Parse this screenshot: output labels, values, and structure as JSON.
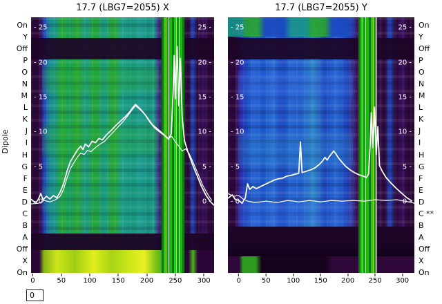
{
  "figure": {
    "ylabel": "Dipole",
    "footer_value": "0"
  },
  "row_labels_left": [
    "On",
    "Y",
    "Off",
    "P",
    "O",
    "N",
    "M",
    "L",
    "K",
    "J",
    "I",
    "H",
    "G",
    "F",
    "E",
    "D",
    "C",
    "B",
    "A",
    "Off",
    "X",
    "On"
  ],
  "row_labels_right": [
    "On",
    "Y",
    "Off",
    "P",
    "O",
    "N",
    "M",
    "L",
    "K",
    "J",
    "I",
    "H",
    "G",
    "F",
    "E",
    "D",
    "C **",
    "B",
    "A",
    "Off",
    "X",
    "On"
  ],
  "palette": {
    "purple-dark": "#2a0736",
    "purple-mid": "#3a1060",
    "blue-deep": "#1b2fae",
    "blue-mid": "#2767d2",
    "teal": "#18958a",
    "green": "#28a42e",
    "green-bright": "#2fc61a",
    "yellow-green": "#cde61a",
    "band-dark": "#1c0526",
    "trace": "#ffffff"
  },
  "chart_data": [
    {
      "type": "heatmap+line",
      "title": "17.7 (LBG7=2055) X",
      "xlabel": "",
      "x_ticks": [
        0,
        50,
        100,
        150,
        200,
        250,
        300
      ],
      "v_ticks": [
        25,
        20,
        15,
        10,
        5,
        0
      ],
      "x_domain": [
        -3,
        318
      ],
      "v_domain": [
        -10.2,
        26.5
      ],
      "legend": "none",
      "traces": [
        {
          "name": "x-trace-main",
          "points": [
            [
              -3,
              0.4
            ],
            [
              5,
              -0.2
            ],
            [
              10,
              0.4
            ],
            [
              14,
              1.2
            ],
            [
              18,
              0.3
            ],
            [
              24,
              0.8
            ],
            [
              30,
              0.4
            ],
            [
              36,
              0.9
            ],
            [
              42,
              0.6
            ],
            [
              48,
              1.4
            ],
            [
              54,
              2.6
            ],
            [
              60,
              4.4
            ],
            [
              66,
              5.8
            ],
            [
              72,
              6.6
            ],
            [
              78,
              7.4
            ],
            [
              84,
              8.0
            ],
            [
              88,
              7.5
            ],
            [
              92,
              8.3
            ],
            [
              98,
              7.9
            ],
            [
              104,
              8.7
            ],
            [
              110,
              8.5
            ],
            [
              116,
              9.1
            ],
            [
              122,
              8.9
            ],
            [
              130,
              9.7
            ],
            [
              138,
              10.3
            ],
            [
              146,
              11.0
            ],
            [
              154,
              11.6
            ],
            [
              162,
              12.2
            ],
            [
              170,
              12.9
            ],
            [
              176,
              13.6
            ],
            [
              180,
              14.0
            ],
            [
              184,
              13.7
            ],
            [
              190,
              13.2
            ],
            [
              198,
              12.4
            ],
            [
              206,
              11.4
            ],
            [
              214,
              10.6
            ],
            [
              222,
              10.1
            ],
            [
              230,
              9.6
            ],
            [
              238,
              9.0
            ],
            [
              243,
              9.8
            ],
            [
              246,
              15.5
            ],
            [
              248,
              21.0
            ],
            [
              250,
              14.8
            ],
            [
              253,
              22.3
            ],
            [
              256,
              13.8
            ],
            [
              259,
              20.6
            ],
            [
              262,
              12.2
            ],
            [
              266,
              8.8
            ],
            [
              272,
              7.2
            ],
            [
              280,
              5.4
            ],
            [
              288,
              3.8
            ],
            [
              296,
              2.2
            ],
            [
              304,
              0.9
            ],
            [
              312,
              0.0
            ],
            [
              318,
              -0.5
            ]
          ]
        },
        {
          "name": "x-trace-secondary",
          "points": [
            [
              -3,
              -0.3
            ],
            [
              10,
              -0.2
            ],
            [
              20,
              0.2
            ],
            [
              30,
              0.0
            ],
            [
              40,
              0.3
            ],
            [
              48,
              0.8
            ],
            [
              54,
              1.8
            ],
            [
              60,
              3.4
            ],
            [
              66,
              4.8
            ],
            [
              72,
              5.6
            ],
            [
              78,
              6.4
            ],
            [
              84,
              7.0
            ],
            [
              90,
              6.8
            ],
            [
              96,
              7.4
            ],
            [
              102,
              7.2
            ],
            [
              110,
              7.8
            ],
            [
              118,
              8.3
            ],
            [
              126,
              8.7
            ],
            [
              134,
              9.4
            ],
            [
              142,
              10.1
            ],
            [
              150,
              10.8
            ],
            [
              158,
              11.5
            ],
            [
              166,
              12.3
            ],
            [
              174,
              13.2
            ],
            [
              180,
              13.8
            ],
            [
              186,
              13.4
            ],
            [
              194,
              12.8
            ],
            [
              202,
              12.0
            ],
            [
              210,
              11.1
            ],
            [
              220,
              10.4
            ],
            [
              230,
              9.7
            ],
            [
              238,
              9.1
            ],
            [
              244,
              9.4
            ],
            [
              250,
              8.6
            ],
            [
              256,
              8.0
            ],
            [
              262,
              7.3
            ],
            [
              268,
              7.6
            ],
            [
              274,
              7.0
            ],
            [
              282,
              5.5
            ],
            [
              290,
              4.0
            ],
            [
              298,
              2.4
            ],
            [
              306,
              1.2
            ],
            [
              314,
              0.2
            ]
          ]
        }
      ]
    },
    {
      "type": "heatmap+line",
      "title": "17.7 (LBG7=2055) Y",
      "xlabel": "",
      "x_ticks": [
        0,
        50,
        100,
        150,
        200,
        250,
        300
      ],
      "v_ticks": [
        25,
        20,
        15,
        10,
        5,
        0
      ],
      "x_domain": [
        -20,
        322
      ],
      "v_domain": [
        -10.2,
        26.5
      ],
      "legend": "none",
      "traces": [
        {
          "name": "y-trace-main",
          "points": [
            [
              -20,
              0.5
            ],
            [
              -12,
              1.0
            ],
            [
              -6,
              0.3
            ],
            [
              0,
              0.2
            ],
            [
              6,
              -0.2
            ],
            [
              12,
              0.6
            ],
            [
              16,
              2.6
            ],
            [
              20,
              1.8
            ],
            [
              26,
              2.2
            ],
            [
              32,
              1.9
            ],
            [
              40,
              2.2
            ],
            [
              48,
              2.5
            ],
            [
              56,
              2.8
            ],
            [
              64,
              3.1
            ],
            [
              72,
              3.3
            ],
            [
              80,
              3.4
            ],
            [
              88,
              3.7
            ],
            [
              96,
              3.8
            ],
            [
              104,
              4.0
            ],
            [
              110,
              4.1
            ],
            [
              113,
              8.6
            ],
            [
              116,
              4.2
            ],
            [
              124,
              4.4
            ],
            [
              132,
              4.6
            ],
            [
              140,
              4.9
            ],
            [
              148,
              5.4
            ],
            [
              154,
              5.9
            ],
            [
              158,
              6.4
            ],
            [
              162,
              6.0
            ],
            [
              166,
              6.5
            ],
            [
              170,
              6.9
            ],
            [
              174,
              7.3
            ],
            [
              178,
              6.9
            ],
            [
              182,
              6.4
            ],
            [
              188,
              5.8
            ],
            [
              196,
              5.1
            ],
            [
              204,
              4.6
            ],
            [
              212,
              4.2
            ],
            [
              220,
              3.9
            ],
            [
              228,
              3.7
            ],
            [
              234,
              3.5
            ],
            [
              238,
              4.0
            ],
            [
              241,
              8.4
            ],
            [
              243,
              12.8
            ],
            [
              246,
              7.8
            ],
            [
              249,
              13.6
            ],
            [
              252,
              6.8
            ],
            [
              255,
              10.8
            ],
            [
              258,
              5.2
            ],
            [
              263,
              4.4
            ],
            [
              270,
              3.5
            ],
            [
              278,
              2.8
            ],
            [
              288,
              2.0
            ],
            [
              298,
              1.3
            ],
            [
              308,
              0.6
            ],
            [
              318,
              0.1
            ]
          ]
        },
        {
          "name": "y-trace-flat",
          "points": [
            [
              -20,
              1.2
            ],
            [
              -10,
              0.8
            ],
            [
              0,
              0.9
            ],
            [
              8,
              0.4
            ],
            [
              16,
              0.1
            ],
            [
              30,
              -0.1
            ],
            [
              50,
              0.1
            ],
            [
              70,
              -0.1
            ],
            [
              90,
              0.2
            ],
            [
              110,
              0.0
            ],
            [
              130,
              0.2
            ],
            [
              150,
              0.0
            ],
            [
              170,
              0.2
            ],
            [
              190,
              0.1
            ],
            [
              210,
              0.2
            ],
            [
              230,
              0.1
            ],
            [
              250,
              0.3
            ],
            [
              270,
              0.2
            ],
            [
              290,
              0.3
            ],
            [
              305,
              0.1
            ],
            [
              322,
              -0.2
            ]
          ]
        }
      ]
    }
  ]
}
